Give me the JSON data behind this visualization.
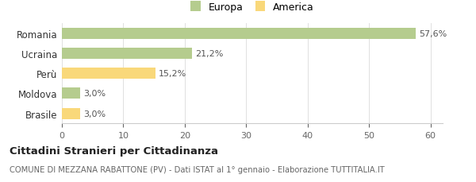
{
  "categories": [
    "Brasile",
    "Moldova",
    "Perù",
    "Ucraina",
    "Romania"
  ],
  "values": [
    3.0,
    3.0,
    15.2,
    21.2,
    57.6
  ],
  "labels": [
    "3,0%",
    "3,0%",
    "15,2%",
    "21,2%",
    "57,6%"
  ],
  "colors": [
    "#f9d87a",
    "#b5cc8e",
    "#f9d87a",
    "#b5cc8e",
    "#b5cc8e"
  ],
  "legend": [
    {
      "label": "Europa",
      "color": "#b5cc8e"
    },
    {
      "label": "America",
      "color": "#f9d87a"
    }
  ],
  "xlim": [
    0,
    62
  ],
  "xticks": [
    0,
    10,
    20,
    30,
    40,
    50,
    60
  ],
  "title": "Cittadini Stranieri per Cittadinanza",
  "subtitle": "COMUNE DI MEZZANA RABATTONE (PV) - Dati ISTAT al 1° gennaio - Elaborazione TUTTITALIA.IT",
  "background_color": "#ffffff",
  "bar_height": 0.55
}
